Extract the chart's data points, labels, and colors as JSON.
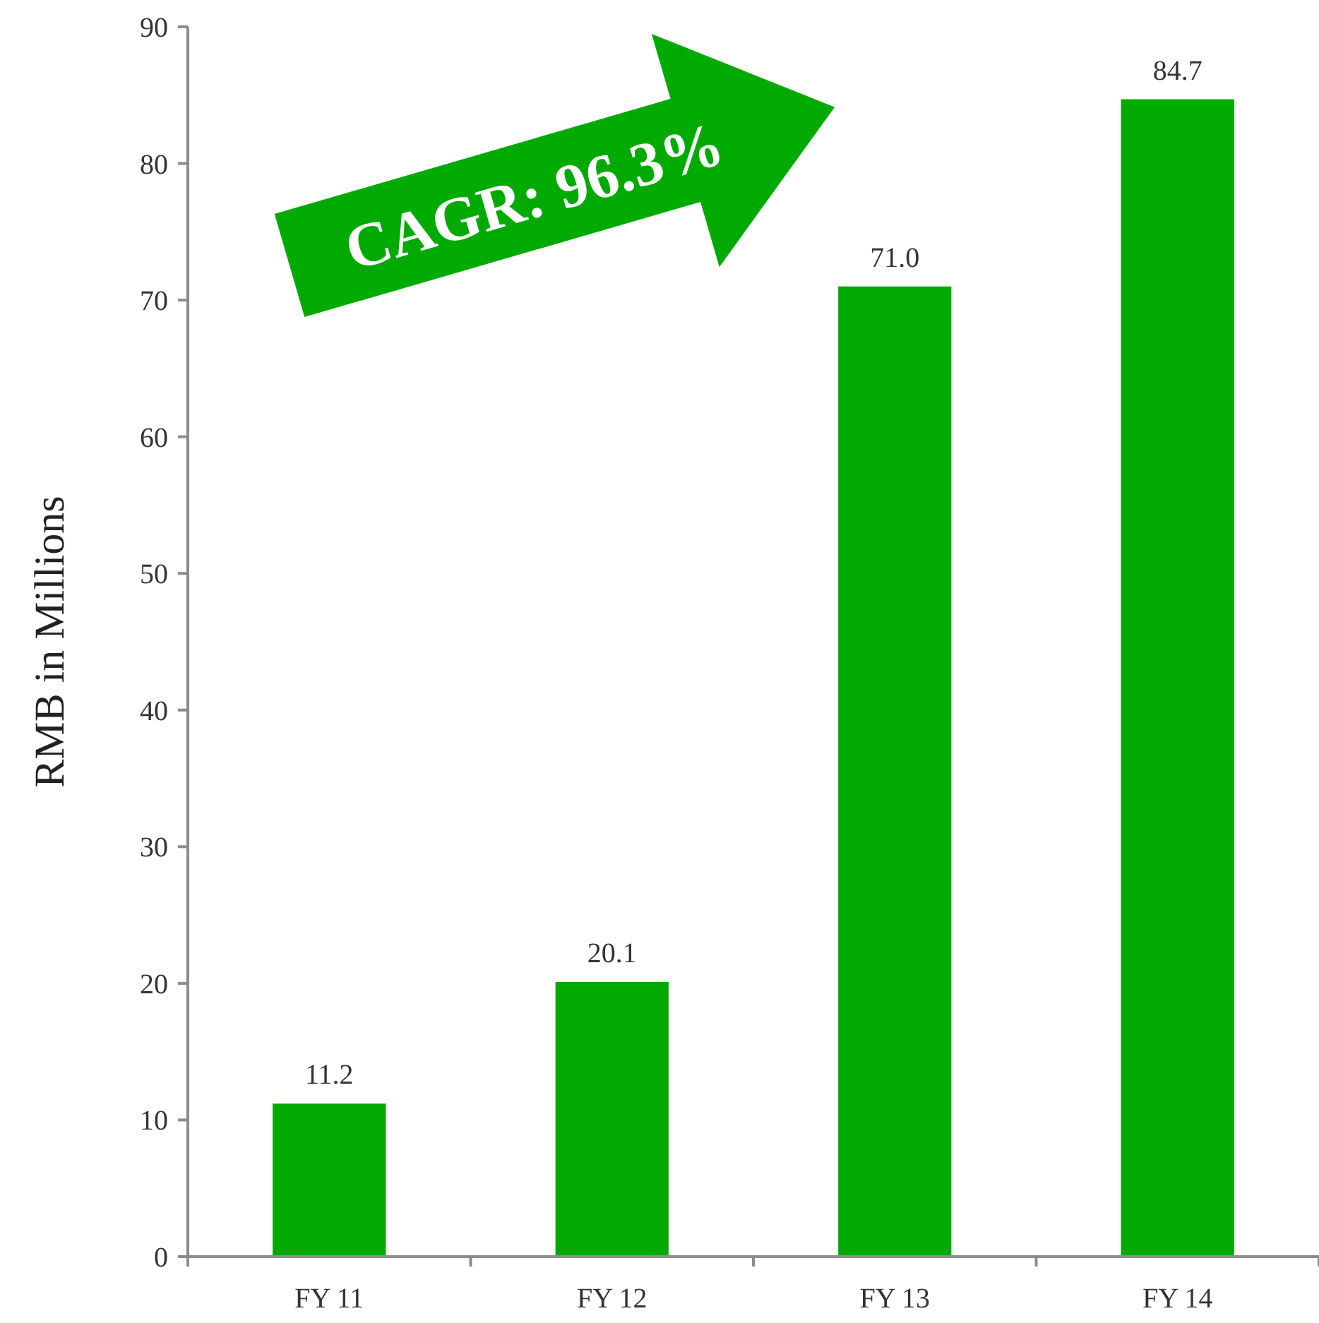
{
  "chart_data": {
    "type": "bar",
    "ylabel": "RMB in Millions",
    "categories": [
      "FY 11",
      "FY 12",
      "FY 13",
      "FY 14"
    ],
    "values": [
      11.2,
      20.1,
      71.0,
      84.7
    ],
    "value_labels": [
      "11.2",
      "20.1",
      "71.0",
      "84.7"
    ],
    "color": "#00aa00",
    "ylim": [
      0,
      90
    ],
    "yticks": [
      0,
      10,
      20,
      30,
      40,
      50,
      60,
      70,
      80,
      90
    ],
    "grid": false,
    "annotations": [
      "CAGR: 96.3%"
    ]
  }
}
